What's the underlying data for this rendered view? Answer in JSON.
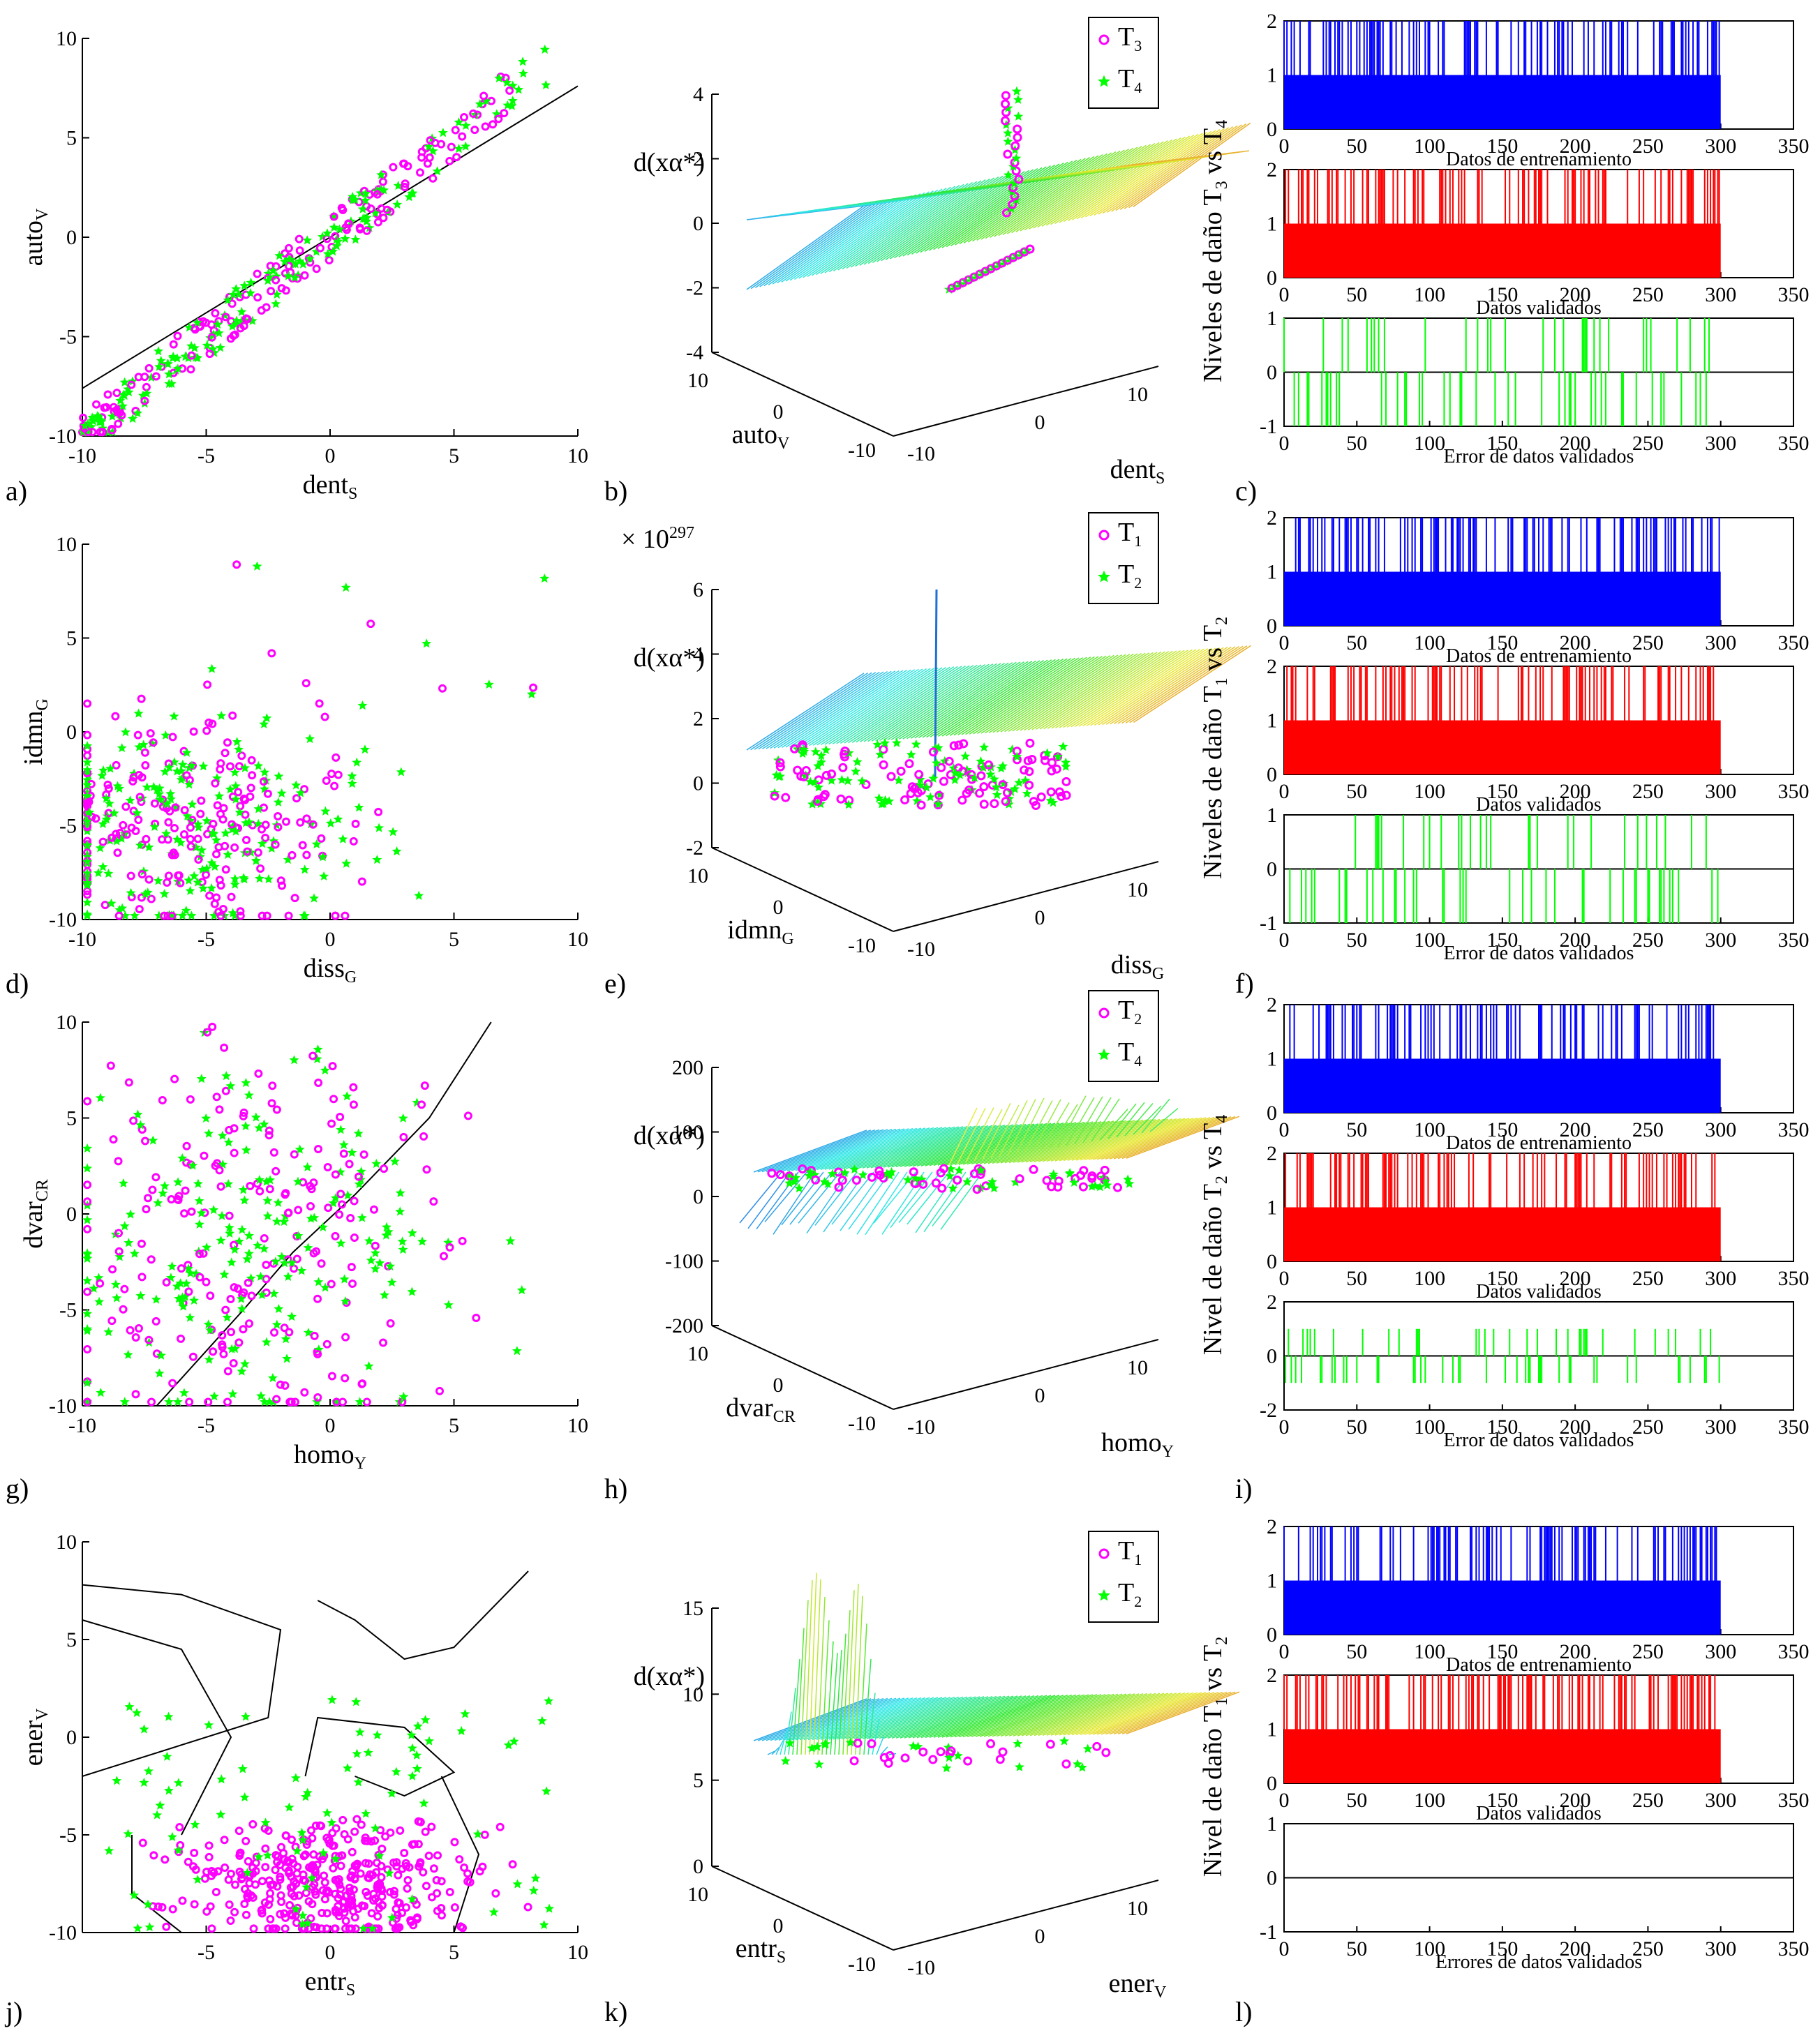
{
  "panel_labels": [
    "a)",
    "b)",
    "c)",
    "d)",
    "e)",
    "f)",
    "g)",
    "h)",
    "i)",
    "j)",
    "k)",
    "l)"
  ],
  "colors": {
    "magenta": "#ff00ff",
    "green": "#00ff00",
    "blue": "#0000ff",
    "red": "#ff0000",
    "line": "#000000"
  },
  "chart_data": [
    {
      "id": "a",
      "type": "scatter",
      "xlabel": "dent",
      "xsub": "S",
      "ylabel": "auto",
      "ysub": "V",
      "xlim": [
        -10,
        10
      ],
      "ylim": [
        -10,
        10
      ],
      "xticks": [
        -10,
        -5,
        0,
        5,
        10
      ],
      "yticks": [
        -10,
        -5,
        0,
        5,
        10
      ],
      "boundary": [
        [
          -10,
          -7.6
        ],
        [
          10,
          7.6
        ]
      ],
      "series": [
        {
          "name": "T3",
          "color": "magenta"
        },
        {
          "name": "T4",
          "color": "green"
        }
      ],
      "trend": "clustered along y≈1.0x"
    },
    {
      "id": "b",
      "type": "surface3d",
      "zlabel": "d(xα*)",
      "xlabel": "dent",
      "xsub": "S",
      "ylabel": "auto",
      "ysub": "V",
      "zticks": [
        -4,
        -2,
        0,
        2,
        4
      ],
      "xticks": [
        -10,
        0,
        10
      ],
      "yticks": [
        -10,
        0,
        10
      ],
      "legend": [
        {
          "label": "T",
          "sub": "3",
          "color": "magenta",
          "marker": "circle"
        },
        {
          "label": "T",
          "sub": "4",
          "color": "green",
          "marker": "star"
        }
      ]
    },
    {
      "id": "c",
      "type": "bar",
      "ylabel": "Niveles de daño T",
      "ysub1": "3",
      "ylabel_mid": " vs T",
      "ysub2": "4",
      "subplots": [
        {
          "title": "Datos de entrenamiento",
          "color": "blue",
          "ylim": [
            0,
            2
          ],
          "yticks": [
            0,
            1,
            2
          ]
        },
        {
          "title": "Datos validados",
          "color": "red",
          "ylim": [
            0,
            2
          ],
          "yticks": [
            0,
            1,
            2
          ]
        },
        {
          "title": "Error de datos validados",
          "color": "green",
          "ylim": [
            -1,
            1
          ],
          "yticks": [
            -1,
            0,
            1
          ]
        }
      ],
      "xticks": [
        0,
        50,
        100,
        150,
        200,
        250,
        300,
        350
      ],
      "n": 300
    },
    {
      "id": "d",
      "type": "scatter",
      "xlabel": "diss",
      "xsub": "G",
      "ylabel": "idmn",
      "ysub": "G",
      "xlim": [
        -10,
        10
      ],
      "ylim": [
        -10,
        10
      ],
      "xticks": [
        -10,
        -5,
        0,
        5,
        10
      ],
      "yticks": [
        -10,
        -5,
        0,
        5,
        10
      ],
      "series": [
        {
          "name": "T1",
          "color": "magenta"
        },
        {
          "name": "T2",
          "color": "green"
        }
      ],
      "trend": "spread lower-left"
    },
    {
      "id": "e",
      "type": "surface3d",
      "zlabel": "d(xα*)",
      "xlabel": "diss",
      "xsub": "G",
      "ylabel": "idmn",
      "ysub": "G",
      "zmult": "× 10",
      "zexp": "297",
      "zticks": [
        -2,
        0,
        2,
        4,
        6
      ],
      "xticks": [
        -10,
        0,
        10
      ],
      "yticks": [
        -10,
        0,
        10
      ],
      "legend": [
        {
          "label": "T",
          "sub": "1",
          "color": "magenta",
          "marker": "circle"
        },
        {
          "label": "T",
          "sub": "2",
          "color": "green",
          "marker": "star"
        }
      ]
    },
    {
      "id": "f",
      "type": "bar",
      "ylabel": "Niveles de daño T",
      "ysub1": "1",
      "ylabel_mid": " vs T",
      "ysub2": "2",
      "subplots": [
        {
          "title": "Datos de entrenamiento",
          "color": "blue",
          "ylim": [
            0,
            2
          ],
          "yticks": [
            0,
            1,
            2
          ]
        },
        {
          "title": "Datos validados",
          "color": "red",
          "ylim": [
            0,
            2
          ],
          "yticks": [
            0,
            1,
            2
          ]
        },
        {
          "title": "Error de datos validados",
          "color": "green",
          "ylim": [
            -1,
            1
          ],
          "yticks": [
            -1,
            0,
            1
          ]
        }
      ],
      "xticks": [
        0,
        50,
        100,
        150,
        200,
        250,
        300,
        350
      ],
      "n": 300
    },
    {
      "id": "g",
      "type": "scatter",
      "xlabel": "homo",
      "xsub": "Y",
      "ylabel": "dvar",
      "ysub": "CR",
      "xlim": [
        -10,
        10
      ],
      "ylim": [
        -10,
        10
      ],
      "xticks": [
        -10,
        -5,
        0,
        5,
        10
      ],
      "yticks": [
        -10,
        -5,
        0,
        5,
        10
      ],
      "boundary": [
        [
          -7,
          -10
        ],
        [
          -3.5,
          -5
        ],
        [
          -1.5,
          -2
        ],
        [
          1,
          1
        ],
        [
          4,
          5
        ],
        [
          6.5,
          10
        ]
      ],
      "series": [
        {
          "name": "T2",
          "color": "magenta"
        },
        {
          "name": "T4",
          "color": "green"
        }
      ],
      "trend": "mixed"
    },
    {
      "id": "h",
      "type": "surface3d",
      "zlabel": "d(xα*)",
      "xlabel": "homo",
      "xsub": "Y",
      "ylabel": "dvar",
      "ysub": "CR",
      "zticks": [
        -200,
        -100,
        0,
        100,
        200
      ],
      "xticks": [
        -10,
        0,
        10
      ],
      "yticks": [
        -10,
        0,
        10
      ],
      "legend": [
        {
          "label": "T",
          "sub": "2",
          "color": "magenta",
          "marker": "circle"
        },
        {
          "label": "T",
          "sub": "4",
          "color": "green",
          "marker": "star"
        }
      ]
    },
    {
      "id": "i",
      "type": "bar",
      "ylabel": "Nivel de daño T",
      "ysub1": "2",
      "ylabel_mid": " vs T",
      "ysub2": "4",
      "subplots": [
        {
          "title": "Datos de entrenamiento",
          "color": "blue",
          "ylim": [
            0,
            2
          ],
          "yticks": [
            0,
            1,
            2
          ]
        },
        {
          "title": "Datos validados",
          "color": "red",
          "ylim": [
            0,
            2
          ],
          "yticks": [
            0,
            1,
            2
          ]
        },
        {
          "title": "Error de datos validados",
          "color": "green",
          "ylim": [
            -2,
            2
          ],
          "yticks": [
            -2,
            0,
            2
          ]
        }
      ],
      "xticks": [
        0,
        50,
        100,
        150,
        200,
        250,
        300,
        350
      ],
      "n": 300
    },
    {
      "id": "j",
      "type": "scatter",
      "xlabel": "entr",
      "xsub": "S",
      "ylabel": "ener",
      "ysub": "V",
      "xlim": [
        -10,
        10
      ],
      "ylim": [
        -10,
        10
      ],
      "xticks": [
        -5,
        0,
        5,
        10
      ],
      "yticks": [
        -10,
        -5,
        0,
        5,
        10
      ],
      "series": [
        {
          "name": "T1",
          "color": "magenta"
        },
        {
          "name": "T2",
          "color": "green"
        }
      ],
      "trend": "cluster bottom center"
    },
    {
      "id": "k",
      "type": "surface3d",
      "zlabel": "d(xα*)",
      "xlabel": "ener",
      "xsub": "V",
      "ylabel": "entr",
      "ysub": "S",
      "zticks": [
        0,
        5,
        10,
        15
      ],
      "xticks": [
        -10,
        0,
        10
      ],
      "yticks": [
        -10,
        0,
        10
      ],
      "legend": [
        {
          "label": "T",
          "sub": "1",
          "color": "magenta",
          "marker": "circle"
        },
        {
          "label": "T",
          "sub": "2",
          "color": "green",
          "marker": "star"
        }
      ]
    },
    {
      "id": "l",
      "type": "bar",
      "ylabel": "Nivel de daño T",
      "ysub1": "1",
      "ylabel_mid": " vs T",
      "ysub2": "2",
      "subplots": [
        {
          "title": "Datos de entrenamiento",
          "color": "blue",
          "ylim": [
            0,
            2
          ],
          "yticks": [
            0,
            1,
            2
          ]
        },
        {
          "title": "Datos validados",
          "color": "red",
          "ylim": [
            0,
            2
          ],
          "yticks": [
            0,
            1,
            2
          ]
        },
        {
          "title": "Errores de datos validados",
          "color": "green",
          "ylim": [
            -1,
            1
          ],
          "yticks": [
            -1,
            0,
            1
          ]
        }
      ],
      "xticks": [
        0,
        50,
        100,
        150,
        200,
        250,
        300,
        350
      ],
      "n": 300
    }
  ]
}
